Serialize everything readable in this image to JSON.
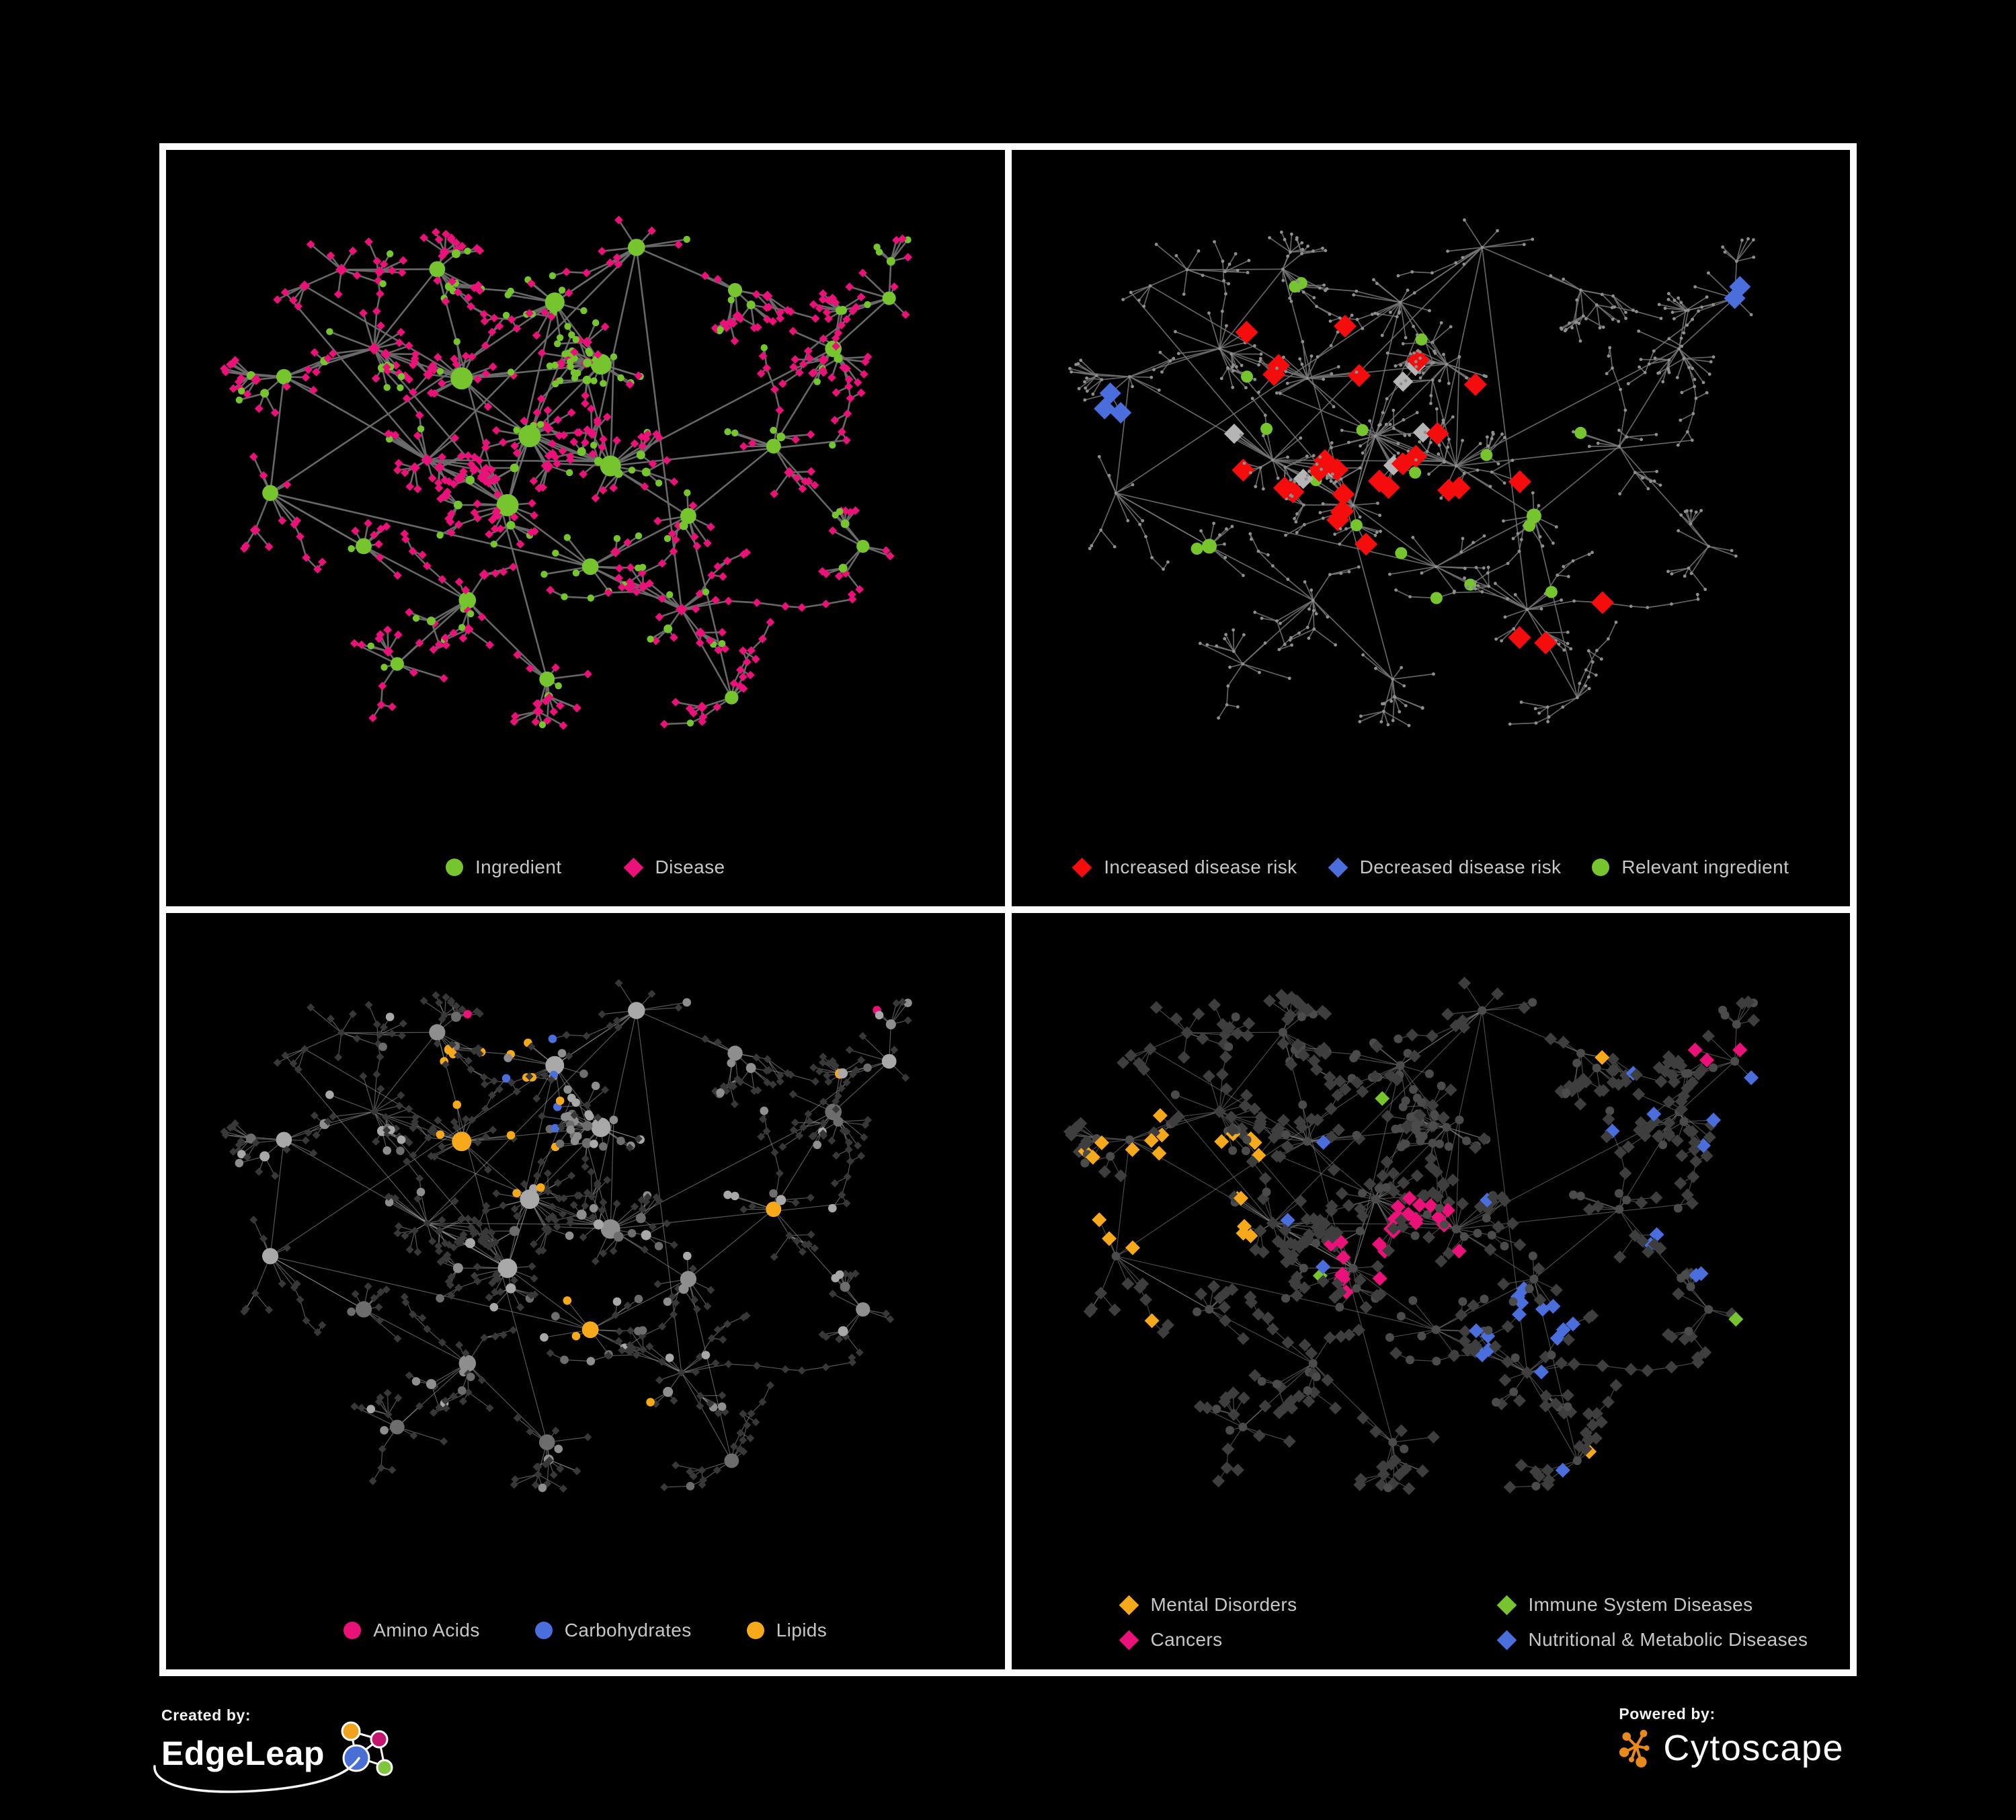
{
  "colors": {
    "background": "#000000",
    "frame": "#fbfbfb",
    "text": "#c7c7c7",
    "branding_text": "#f2f2f2",
    "green": "#76c42e",
    "pink": "#ea1278",
    "red": "#f50d0d",
    "blue": "#4a6fdd",
    "orange": "#f7a91c",
    "gray_highlight": "#b5b5b5",
    "tiny_node": "#8f8f8f",
    "gray_node_a": "#a8a8a8",
    "gray_node_b": "#8e8e8e",
    "gray_node_c": "#6d6d6d",
    "dark_diamond3": "#383838",
    "dark_diamond4": "#3e3e3e",
    "dark_circle4": "#4b4b4b",
    "edge1": "#6d6d6d",
    "edge2": "#757575",
    "edge3": "#9e9e9e",
    "edge4": "#909090",
    "cytoscape_orange": "#e8891d",
    "edgeleap_blue": "#4a6fd4",
    "edgeleap_orange": "#efa31f",
    "edgeleap_magenta": "#c2176f",
    "edgeleap_green": "#7dc63e"
  },
  "panels": [
    {
      "name": "ingredient-disease-network",
      "legend": [
        {
          "label": "Ingredient",
          "shape": "circle",
          "color": "#76c42e"
        },
        {
          "label": "Disease",
          "shape": "diamond",
          "color": "#ea1278"
        }
      ]
    },
    {
      "name": "disease-risk-network",
      "legend": [
        {
          "label": "Increased disease risk",
          "shape": "diamond",
          "color": "#f50d0d"
        },
        {
          "label": "Decreased disease risk",
          "shape": "diamond",
          "color": "#4a6fdd"
        },
        {
          "label": "Relevant ingredient",
          "shape": "circle",
          "color": "#76c42e"
        }
      ]
    },
    {
      "name": "ingredient-class-network",
      "legend": [
        {
          "label": "Amino Acids",
          "shape": "circle",
          "color": "#ea1278"
        },
        {
          "label": "Carbohydrates",
          "shape": "circle",
          "color": "#4a6fdd"
        },
        {
          "label": "Lipids",
          "shape": "circle",
          "color": "#f7a91c"
        }
      ]
    },
    {
      "name": "disease-category-network",
      "legend": [
        {
          "label": "Mental Disorders",
          "shape": "diamond",
          "color": "#f7a91c"
        },
        {
          "label": "Immune System Diseases",
          "shape": "diamond",
          "color": "#76c42e"
        },
        {
          "label": "Cancers",
          "shape": "diamond",
          "color": "#ea1278"
        },
        {
          "label": "Nutritional & Metabolic Diseases",
          "shape": "diamond",
          "color": "#4a6fdd"
        }
      ]
    }
  ],
  "branding": {
    "created_by_label": "Created by:",
    "created_by_name": "EdgeLeap",
    "powered_by_label": "Powered by:",
    "powered_by_name": "Cytoscape"
  },
  "network": {
    "seed": 20177
  }
}
